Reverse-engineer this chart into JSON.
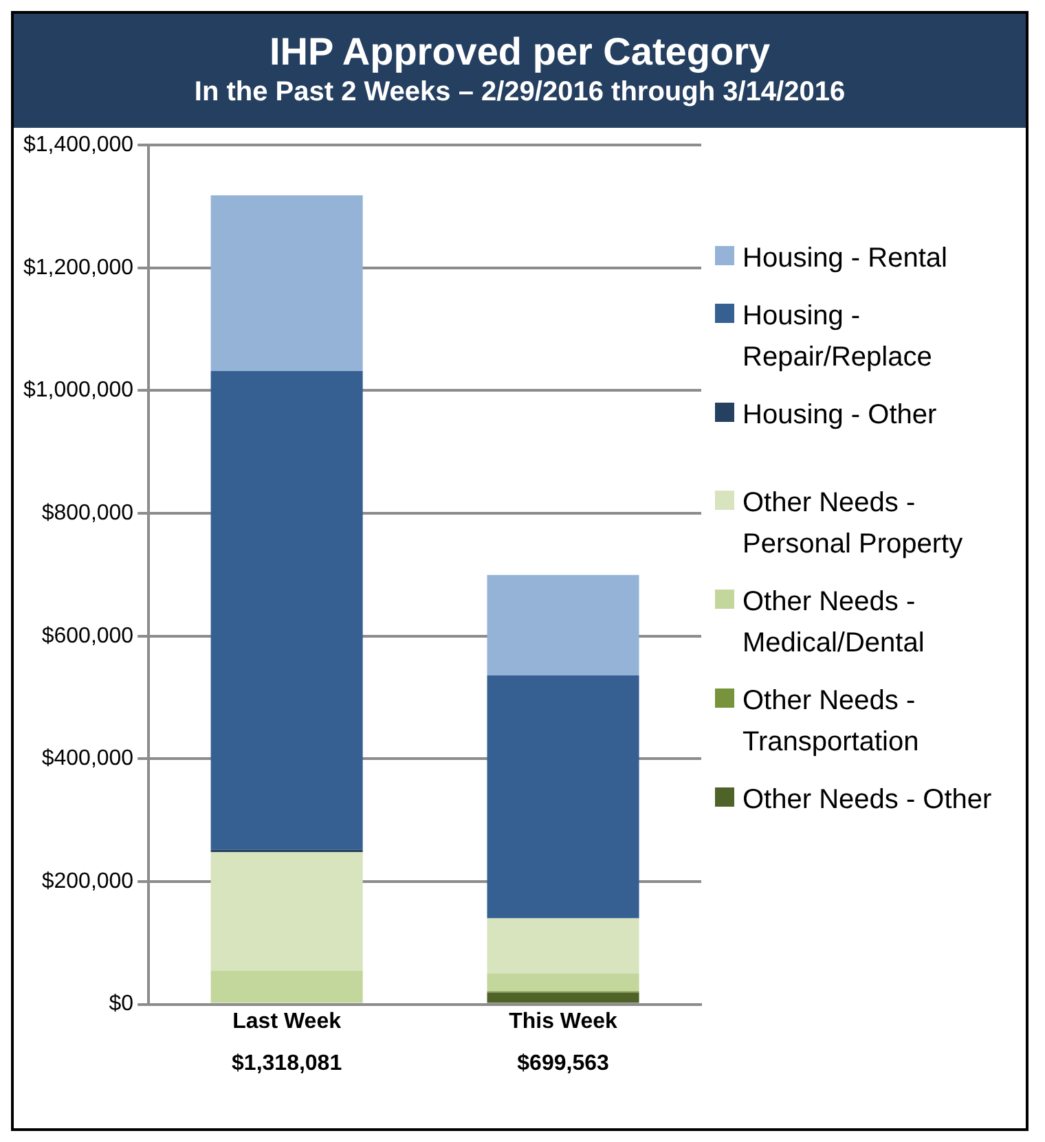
{
  "chart_data": {
    "type": "bar",
    "title": "IHP Approved per Category",
    "subtitle": "In the Past 2 Weeks – 2/29/2016 through 3/14/2016",
    "categories": [
      "Last Week",
      "This Week"
    ],
    "stacked": true,
    "series": [
      {
        "name": "Other Needs - Other",
        "color": "#4f6228",
        "values": [
          0,
          19000
        ]
      },
      {
        "name": "Other Needs - Transportation",
        "color": "#77933c",
        "values": [
          0,
          2000
        ]
      },
      {
        "name": "Other Needs - Medical/Dental",
        "color": "#c3d69b",
        "values": [
          55000,
          29000
        ]
      },
      {
        "name": "Other Needs - Personal Property",
        "color": "#d7e4bd",
        "values": [
          193000,
          90000
        ]
      },
      {
        "name": "Housing - Other",
        "color": "#254061",
        "values": [
          4000,
          0
        ]
      },
      {
        "name": "Housing - Repair/Replace",
        "color": "#376092",
        "values": [
          780000,
          396000
        ]
      },
      {
        "name": "Housing - Rental",
        "color": "#95b3d7",
        "values": [
          286081,
          163563
        ]
      }
    ],
    "totals": [
      "$1,318,081",
      "$699,563"
    ],
    "ylim": [
      0,
      1400000
    ],
    "yticks": [
      {
        "value": 0,
        "label": "$0"
      },
      {
        "value": 200000,
        "label": "$200,000"
      },
      {
        "value": 400000,
        "label": "$400,000"
      },
      {
        "value": 600000,
        "label": "$600,000"
      },
      {
        "value": 800000,
        "label": "$800,000"
      },
      {
        "value": 1000000,
        "label": "$1,000,000"
      },
      {
        "value": 1200000,
        "label": "$1,200,000"
      },
      {
        "value": 1400000,
        "label": "$1,400,000"
      }
    ],
    "grid": "y",
    "legend": "right"
  }
}
